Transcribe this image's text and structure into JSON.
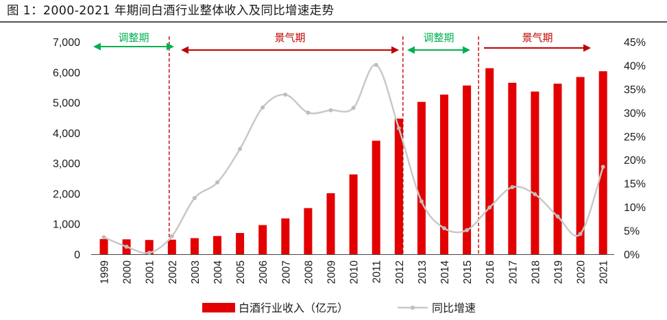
{
  "title": "图 1：2000-2021 年期间白酒行业整体收入及同比增速走势",
  "colors": {
    "bar": "#e30000",
    "line": "#c8c8c8",
    "marker": "#bdbdbd",
    "phase_boom": "#c00000",
    "phase_adjust": "#00b050",
    "divider": "#c00000",
    "axis_text": "#1a1a1a"
  },
  "chart_data": {
    "type": "bar",
    "categories": [
      "1999",
      "2000",
      "2001",
      "2002",
      "2003",
      "2004",
      "2005",
      "2006",
      "2007",
      "2008",
      "2009",
      "2010",
      "2011",
      "2012",
      "2013",
      "2014",
      "2015",
      "2016",
      "2017",
      "2018",
      "2019",
      "2020",
      "2021"
    ],
    "series": [
      {
        "name": "白酒行业收入（亿元）",
        "type": "bar",
        "axis": "left",
        "values": [
          500,
          490,
          470,
          480,
          530,
          600,
          700,
          960,
          1180,
          1520,
          2010,
          2630,
          3740,
          4470,
          5020,
          5260,
          5560,
          6130,
          5650,
          5360,
          5620,
          5840,
          6030
        ]
      },
      {
        "name": "同比增速",
        "type": "line",
        "axis": "right",
        "unit": "%",
        "values": [
          3.6,
          1.6,
          0.3,
          3.8,
          11.9,
          15.2,
          22.3,
          31.1,
          33.8,
          30.0,
          30.5,
          31.0,
          40.1,
          26.7,
          11.2,
          5.5,
          5.1,
          9.9,
          14.2,
          12.7,
          8.0,
          4.3,
          18.5
        ]
      }
    ],
    "y_left": {
      "min": 0,
      "max": 7000,
      "ticks": [
        "0",
        "1,000",
        "2,000",
        "3,000",
        "4,000",
        "5,000",
        "6,000",
        "7,000"
      ]
    },
    "y_right": {
      "min": 0,
      "max": 45,
      "ticks": [
        "0%",
        "5%",
        "10%",
        "15%",
        "20%",
        "25%",
        "30%",
        "35%",
        "40%",
        "45%"
      ]
    },
    "phases": [
      {
        "label": "调整期",
        "kind": "adjust",
        "from": "1999",
        "to": "2002"
      },
      {
        "label": "景气期",
        "kind": "boom",
        "from": "2002",
        "to": "2012"
      },
      {
        "label": "调整期",
        "kind": "adjust",
        "from": "2012",
        "to": "2015"
      },
      {
        "label": "景气期",
        "kind": "boom",
        "from": "2015",
        "to": "2021"
      }
    ],
    "dividers": [
      "2002",
      "2012",
      "2015"
    ],
    "grid": false,
    "legend_position": "bottom"
  }
}
